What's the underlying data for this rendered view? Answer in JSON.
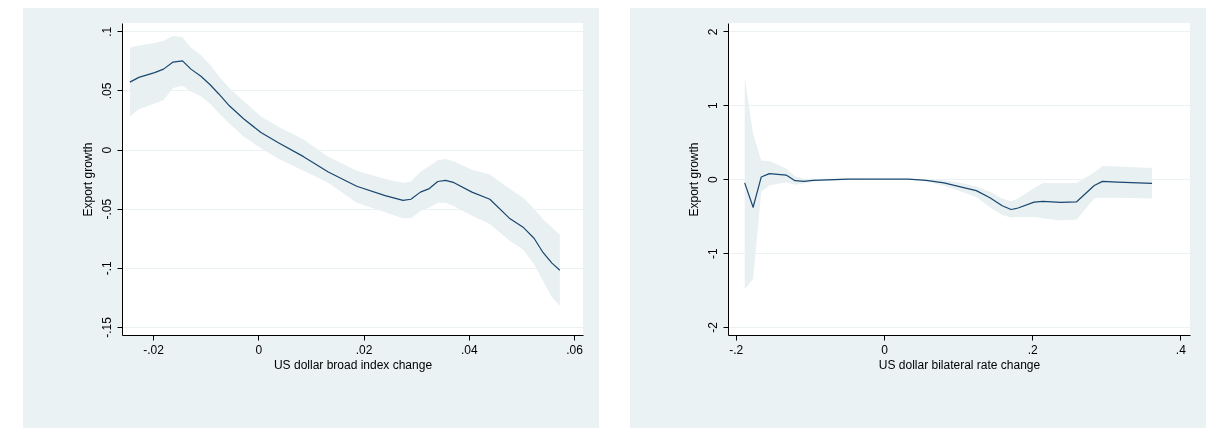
{
  "chart_data": [
    {
      "type": "line",
      "xlabel": "US dollar broad index change",
      "ylabel": "Export growth",
      "xlim": [
        -0.0259,
        0.0617
      ],
      "ylim": [
        -0.1568,
        0.107
      ],
      "xticks": [
        {
          "value": -0.02,
          "label": "-.02"
        },
        0,
        {
          "value": 0.02,
          "label": ".02"
        },
        {
          "value": 0.04,
          "label": ".04"
        },
        {
          "value": 0.06,
          "label": ".06"
        }
      ],
      "yticks": [
        {
          "value": -0.15,
          "label": "-.15"
        },
        {
          "value": -0.1,
          "label": "-.1"
        },
        {
          "value": -0.05,
          "label": "-.05"
        },
        0,
        {
          "value": 0.05,
          "label": ".05"
        },
        {
          "value": 0.1,
          "label": ".1"
        }
      ],
      "grid": "y",
      "marker": "none",
      "line_style": "solid",
      "series": [
        {
          "color": "#1a476f",
          "x": [
            -0.0244,
            -0.0227,
            -0.0197,
            -0.018,
            -0.0162,
            -0.0144,
            -0.0128,
            -0.0109,
            -0.0092,
            -0.0075,
            -0.0055,
            -0.0028,
            0.0005,
            0.0039,
            0.0086,
            0.0133,
            0.0187,
            0.0241,
            0.0275,
            0.029,
            0.0308,
            0.0325,
            0.0341,
            0.0356,
            0.0372,
            0.0406,
            0.044,
            0.0477,
            0.0504,
            0.0524,
            0.0541,
            0.0558,
            0.0573
          ],
          "values": [
            0.057,
            0.061,
            0.065,
            0.068,
            0.074,
            0.075,
            0.068,
            0.062,
            0.055,
            0.047,
            0.037,
            0.026,
            0.0144,
            0.0056,
            -0.006,
            -0.019,
            -0.031,
            -0.039,
            -0.043,
            -0.042,
            -0.036,
            -0.033,
            -0.027,
            -0.026,
            -0.028,
            -0.036,
            -0.042,
            -0.058,
            -0.066,
            -0.075,
            -0.087,
            -0.096,
            -0.102
          ],
          "lower": [
            0.028,
            0.034,
            0.039,
            0.042,
            0.052,
            0.054,
            0.049,
            0.045,
            0.039,
            0.031,
            0.022,
            0.011,
            0.001,
            -0.008,
            -0.018,
            -0.028,
            -0.045,
            -0.053,
            -0.058,
            -0.058,
            -0.052,
            -0.049,
            -0.045,
            -0.045,
            -0.048,
            -0.056,
            -0.063,
            -0.077,
            -0.085,
            -0.097,
            -0.111,
            -0.125,
            -0.132
          ],
          "upper": [
            0.086,
            0.088,
            0.09,
            0.092,
            0.096,
            0.095,
            0.086,
            0.08,
            0.072,
            0.062,
            0.052,
            0.041,
            0.028,
            0.019,
            0.0085,
            -0.006,
            -0.018,
            -0.025,
            -0.028,
            -0.027,
            -0.019,
            -0.014,
            -0.009,
            -0.008,
            -0.01,
            -0.017,
            -0.021,
            -0.033,
            -0.041,
            -0.05,
            -0.059,
            -0.066,
            -0.072
          ]
        }
      ]
    },
    {
      "type": "line",
      "xlabel": "US dollar bilateral rate change",
      "ylabel": "Export growth",
      "xlim": [
        -0.2105,
        0.413
      ],
      "ylim": [
        -2.108,
        2.113
      ],
      "xticks": [
        {
          "value": -0.2,
          "label": "-.2"
        },
        0,
        {
          "value": 0.2,
          "label": ".2"
        },
        {
          "value": 0.4,
          "label": ".4"
        }
      ],
      "yticks": [
        -2,
        -1,
        0,
        1,
        2
      ],
      "grid": "y",
      "marker": "none",
      "line_style": "solid",
      "series": [
        {
          "color": "#1a476f",
          "x": [
            -0.188,
            -0.1766,
            -0.1656,
            -0.1546,
            -0.132,
            -0.12,
            -0.108,
            -0.096,
            -0.048,
            0,
            0.033,
            0.057,
            0.081,
            0.1046,
            0.1246,
            0.143,
            0.1596,
            0.1715,
            0.181,
            0.2026,
            0.2146,
            0.2384,
            0.26,
            0.2838,
            0.2949,
            0.315,
            0.3618
          ],
          "values": [
            -0.05,
            -0.38,
            0.03,
            0.075,
            0.056,
            -0.02,
            -0.03,
            -0.015,
            0,
            0,
            0,
            -0.015,
            -0.05,
            -0.108,
            -0.155,
            -0.25,
            -0.36,
            -0.41,
            -0.39,
            -0.31,
            -0.3,
            -0.315,
            -0.306,
            -0.085,
            -0.03,
            -0.04,
            -0.057
          ],
          "lower": [
            -1.49,
            -1.35,
            -0.17,
            -0.085,
            -0.04,
            -0.075,
            -0.06,
            -0.035,
            -0.01,
            -0.005,
            -0.005,
            -0.03,
            -0.09,
            -0.17,
            -0.24,
            -0.38,
            -0.485,
            -0.52,
            -0.51,
            -0.51,
            -0.53,
            -0.56,
            -0.546,
            -0.26,
            -0.25,
            -0.25,
            -0.26
          ],
          "upper": [
            1.38,
            0.61,
            0.25,
            0.245,
            0.146,
            0.04,
            0.005,
            0.005,
            0.01,
            0.005,
            0.005,
            0.0,
            -0.015,
            -0.05,
            -0.1,
            -0.17,
            -0.26,
            -0.3,
            -0.26,
            -0.12,
            -0.05,
            -0.056,
            -0.05,
            0.09,
            0.18,
            0.17,
            0.15
          ]
        }
      ]
    }
  ]
}
